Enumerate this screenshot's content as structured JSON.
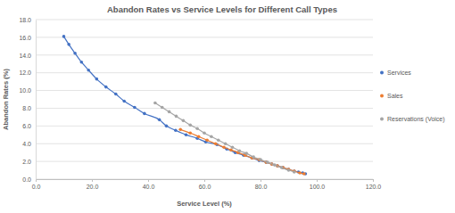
{
  "chart_data": {
    "type": "scatter",
    "title": "Abandon Rates vs Service Levels for Different Call Types",
    "x_label": "Service Level (%)",
    "y_label": "Abandon Rates (%)",
    "xlim": [
      0,
      120
    ],
    "ylim": [
      0,
      18
    ],
    "xticks": [
      {
        "value": 0,
        "label": "0.0"
      },
      {
        "value": 20,
        "label": "20.0"
      },
      {
        "value": 40,
        "label": "40.0"
      },
      {
        "value": 60,
        "label": "60.0"
      },
      {
        "value": 80,
        "label": "80.0"
      },
      {
        "value": 100,
        "label": "100.0"
      },
      {
        "value": 120,
        "label": "120.0"
      }
    ],
    "yticks": [
      {
        "value": 0,
        "label": "0.0"
      },
      {
        "value": 2,
        "label": "2.0"
      },
      {
        "value": 4,
        "label": "4.0"
      },
      {
        "value": 6,
        "label": "6.0"
      },
      {
        "value": 8,
        "label": "8.0"
      },
      {
        "value": 10,
        "label": "10.0"
      },
      {
        "value": 12,
        "label": "12.0"
      },
      {
        "value": 14,
        "label": "14.0"
      },
      {
        "value": 16,
        "label": "16.0"
      },
      {
        "value": 18,
        "label": "18.0"
      }
    ],
    "grid": true,
    "legend": "right",
    "series": [
      {
        "name": "Services",
        "color": "#4472c4",
        "marker": "circle",
        "line_style": "solid",
        "x": [
          10.0,
          11.8,
          14.0,
          16.3,
          18.8,
          21.7,
          25.0,
          28.5,
          31.5,
          35.2,
          38.7,
          44.0,
          46.5,
          49.8,
          53.5,
          57.5,
          60.5,
          64.5,
          68.0,
          71.0,
          74.0,
          77.0,
          79.5,
          82.0,
          84.0,
          86.0,
          88.0,
          90.0,
          92.0,
          93.5,
          95.0,
          96.0
        ],
        "values": [
          16.1,
          15.2,
          14.2,
          13.2,
          12.3,
          11.3,
          10.4,
          9.6,
          8.8,
          8.1,
          7.4,
          6.7,
          6.0,
          5.5,
          5.0,
          4.6,
          4.2,
          3.9,
          3.4,
          3.0,
          2.7,
          2.4,
          2.1,
          1.9,
          1.7,
          1.5,
          1.3,
          1.1,
          0.9,
          0.8,
          0.7,
          0.6
        ]
      },
      {
        "name": "Sales",
        "color": "#ed7d31",
        "marker": "circle",
        "line_style": "solid",
        "x": [
          51.5,
          55.0,
          58.0,
          61.0,
          64.0,
          67.0,
          69.5,
          72.0,
          74.5,
          77.0,
          79.5,
          82.0,
          84.0,
          86.0,
          88.0,
          90.0,
          92.0,
          94.0,
          95.5
        ],
        "values": [
          5.6,
          5.2,
          4.8,
          4.4,
          4.0,
          3.6,
          3.3,
          3.0,
          2.7,
          2.4,
          2.2,
          1.9,
          1.7,
          1.5,
          1.3,
          1.1,
          0.9,
          0.7,
          0.6
        ]
      },
      {
        "name": "Reservations (Voice)",
        "color": "#a5a5a5",
        "marker": "circle",
        "line_style": "solid",
        "x": [
          42.5,
          45.0,
          47.5,
          50.0,
          52.5,
          55.0,
          57.5,
          60.0,
          62.5,
          65.0,
          67.5,
          70.0,
          72.5,
          75.0,
          77.5,
          80.0,
          82.5,
          85.0,
          87.5,
          90.0,
          92.0
        ],
        "values": [
          8.6,
          8.1,
          7.6,
          7.1,
          6.6,
          6.1,
          5.7,
          5.2,
          4.8,
          4.4,
          4.0,
          3.6,
          3.2,
          2.9,
          2.5,
          2.2,
          1.9,
          1.6,
          1.3,
          1.0,
          0.8
        ]
      }
    ]
  }
}
